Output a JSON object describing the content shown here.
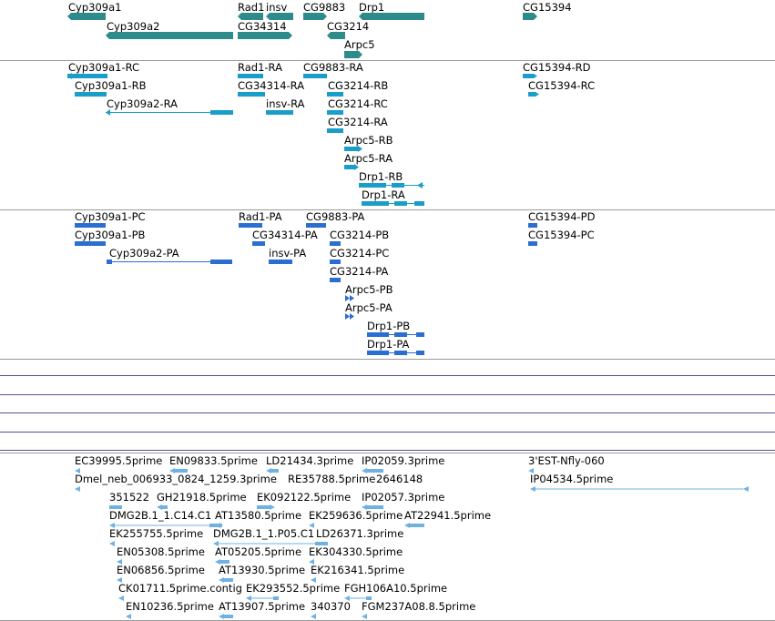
{
  "colors": {
    "gene": "#2e8b8b",
    "transcript": "#1a9ec9",
    "protein": "#2a6ed0",
    "est": "#6fb2e2",
    "divider": "#9a9a9a",
    "empty_track_line": "#5a4c9a"
  },
  "tracks": {
    "genes": [
      "Cyp309a1",
      "Cyp309a2",
      "Rad1",
      "insv",
      "CG34314",
      "CG9883",
      "Drp1",
      "CG3214",
      "Arpc5",
      "CG15394"
    ],
    "transcripts": [
      "Cyp309a1-RC",
      "Cyp309a1-RB",
      "Cyp309a2-RA",
      "Rad1-RA",
      "CG34314-RA",
      "insv-RA",
      "CG9883-RA",
      "CG3214-RB",
      "CG3214-RC",
      "CG3214-RA",
      "Arpc5-RB",
      "Arpc5-RA",
      "Drp1-RB",
      "Drp1-RA",
      "CG15394-RD",
      "CG15394-RC"
    ],
    "proteins": [
      "Cyp309a1-PC",
      "Cyp309a1-PB",
      "Cyp309a2-PA",
      "Rad1-PA",
      "CG34314-PA",
      "insv-PA",
      "CG9883-PA",
      "CG3214-PB",
      "CG3214-PC",
      "CG3214-PA",
      "Arpc5-PB",
      "Arpc5-PA",
      "Drp1-PB",
      "Drp1-PA",
      "CG15394-PD",
      "CG15394-PC"
    ],
    "ests": [
      "EC39995.5prime",
      "EN09833.5prime",
      "LD21434.3prime",
      "IP02059.3prime",
      "3'EST-Nfly-060",
      "Dmel_neb_006933_0824_1259.3prime",
      "RE35788.5prime",
      "2646148",
      "IP04534.5prime",
      "351522",
      "GH21918.5prime",
      "EK092122.5prime",
      "IP02057.3prime",
      "DMG2B.1_1.C14.C1",
      "AT13580.5prime",
      "EK259636.5prime",
      "AT22941.5prime",
      "EK255755.5prime",
      "DMG2B.1_1.P05.C1",
      "LD26371.3prime",
      "EN05308.5prime",
      "AT05205.5prime",
      "EK304330.5prime",
      "EN06856.5prime",
      "AT13930.5prime",
      "EK216341.5prime",
      "CK01711.5prime.contig",
      "EK293552.5prime",
      "FGH106A10.5prime",
      "EN10236.5prime",
      "AT13907.5prime",
      "340370",
      "FGM237A08.8.5prime"
    ]
  }
}
